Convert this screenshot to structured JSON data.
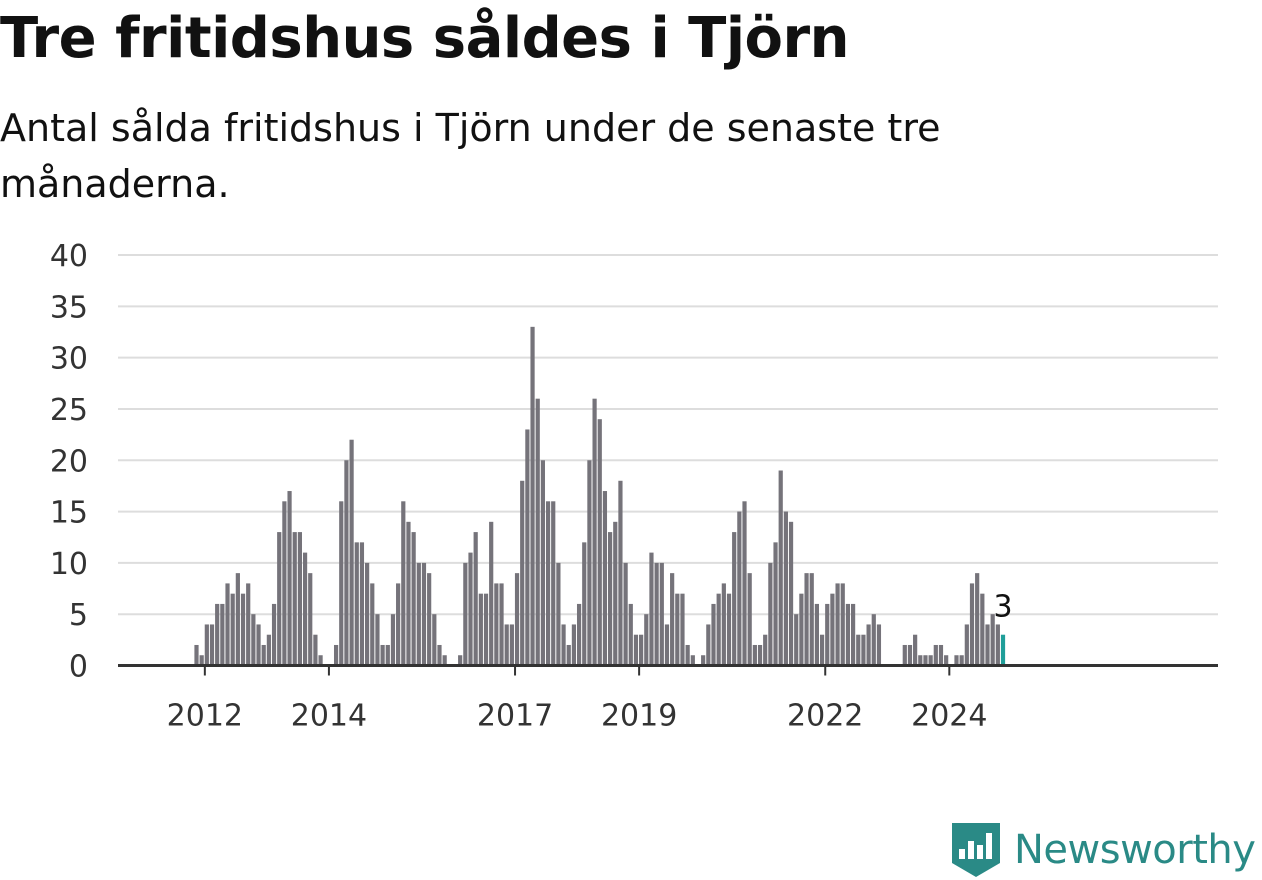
{
  "header": {
    "title": "Tre fritidshus såldes i Tjörn",
    "subtitle": "Antal sålda fritidshus i Tjörn under de senaste tre månaderna."
  },
  "brand": {
    "name": "Newsworthy"
  },
  "colors": {
    "bar": "#75737a",
    "highlight": "#1f9e99",
    "grid": "#dddddd",
    "brand": "#2a8a86"
  },
  "chart_data": {
    "type": "bar",
    "title": "Tre fritidshus såldes i Tjörn",
    "subtitle": "Antal sålda fritidshus i Tjörn under de senaste tre månaderna.",
    "ylim": [
      0,
      40
    ],
    "yticks": [
      0,
      5,
      10,
      15,
      20,
      25,
      30,
      35,
      40
    ],
    "xticks": [
      "2012",
      "2014",
      "2017",
      "2019",
      "2022",
      "2024"
    ],
    "highlight_label": "3",
    "values": [
      0,
      0,
      0,
      0,
      0,
      0,
      0,
      0,
      0,
      0,
      2,
      1,
      4,
      4,
      6,
      6,
      8,
      7,
      9,
      7,
      8,
      5,
      4,
      2,
      3,
      6,
      13,
      16,
      17,
      13,
      13,
      11,
      9,
      3,
      1,
      0,
      0,
      2,
      16,
      20,
      22,
      12,
      12,
      10,
      8,
      5,
      2,
      2,
      5,
      8,
      16,
      14,
      13,
      10,
      10,
      9,
      5,
      2,
      1,
      0,
      0,
      1,
      10,
      11,
      13,
      7,
      7,
      14,
      8,
      8,
      4,
      4,
      9,
      18,
      23,
      33,
      26,
      20,
      16,
      16,
      10,
      4,
      2,
      4,
      6,
      12,
      20,
      26,
      24,
      17,
      13,
      14,
      18,
      10,
      6,
      3,
      3,
      5,
      11,
      10,
      10,
      4,
      9,
      7,
      7,
      2,
      1,
      0,
      1,
      4,
      6,
      7,
      8,
      7,
      13,
      15,
      16,
      9,
      2,
      2,
      3,
      10,
      12,
      19,
      15,
      14,
      5,
      7,
      9,
      9,
      6,
      3,
      6,
      7,
      8,
      8,
      6,
      6,
      3,
      3,
      4,
      5,
      4,
      0,
      0,
      0,
      0,
      2,
      2,
      3,
      1,
      1,
      1,
      2,
      2,
      1,
      0,
      1,
      1,
      4,
      8,
      9,
      7,
      4,
      5,
      4,
      3
    ]
  }
}
